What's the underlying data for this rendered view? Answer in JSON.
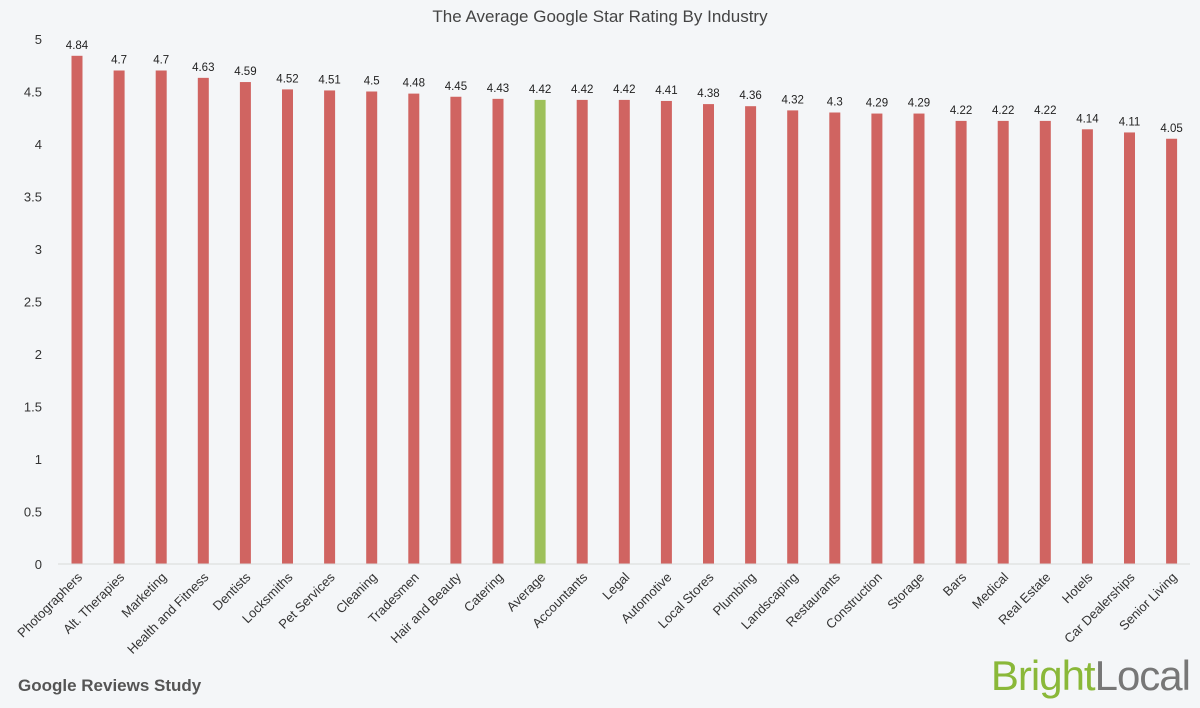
{
  "chart_data": {
    "type": "bar",
    "title": "The Average Google Star Rating By Industry",
    "xlabel": "",
    "ylabel": "",
    "ylim": [
      0,
      5
    ],
    "yticks": [
      "0",
      "0.5",
      "1",
      "1.5",
      "2",
      "2.5",
      "3",
      "3.5",
      "4",
      "4.5",
      "5"
    ],
    "grid": false,
    "categories": [
      "Photographers",
      "Alt. Therapies",
      "Marketing",
      "Health and Fitness",
      "Dentists",
      "Locksmiths",
      "Pet Services",
      "Cleaning",
      "Tradesmen",
      "Hair and Beauty",
      "Catering",
      "Average",
      "Accountants",
      "Legal",
      "Automotive",
      "Local Stores",
      "Plumbing",
      "Landscaping",
      "Restaurants",
      "Construction",
      "Storage",
      "Bars",
      "Medical",
      "Real Estate",
      "Hotels",
      "Car Dealerships",
      "Senior Living"
    ],
    "values": [
      4.84,
      4.7,
      4.7,
      4.63,
      4.59,
      4.52,
      4.51,
      4.5,
      4.48,
      4.45,
      4.43,
      4.42,
      4.42,
      4.42,
      4.41,
      4.38,
      4.36,
      4.32,
      4.3,
      4.29,
      4.29,
      4.22,
      4.22,
      4.22,
      4.14,
      4.11,
      4.05
    ],
    "data_labels": [
      "4.84",
      "4.7",
      "4.7",
      "4.63",
      "4.59",
      "4.52",
      "4.51",
      "4.5",
      "4.48",
      "4.45",
      "4.43",
      "4.42",
      "4.42",
      "4.42",
      "4.41",
      "4.38",
      "4.36",
      "4.32",
      "4.3",
      "4.29",
      "4.29",
      "4.22",
      "4.22",
      "4.22",
      "4.14",
      "4.11",
      "4.05"
    ],
    "highlight_category": "Average",
    "colors": {
      "bar": "#d06461",
      "highlight": "#9dc05a"
    }
  },
  "footer": {
    "study_label": "Google Reviews Study",
    "brand_part1": "Bright",
    "brand_part2": "Local"
  }
}
